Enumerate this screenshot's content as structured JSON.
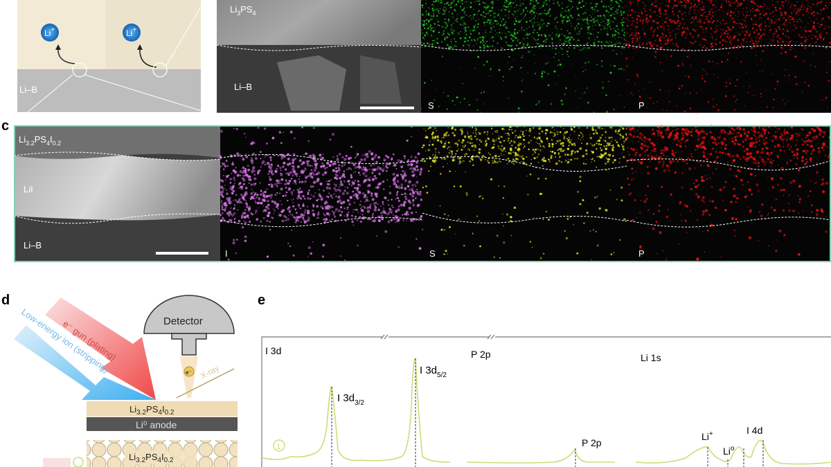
{
  "panel_labels": {
    "c": "c",
    "d": "d",
    "e": "e"
  },
  "panel_b": {
    "ion_label": "Li+",
    "ion_main": "Li",
    "ion_sup": "+",
    "substrate_label": "Li–B",
    "sem_top_label_main": "Li",
    "sem_top_label_sub": "3",
    "sem_top_label_rest": "PS",
    "sem_top_label_sub2": "4",
    "sem_bottom_label": "Li–B",
    "map_labels": [
      "S",
      "P"
    ],
    "map_colors": {
      "S": "#22c020",
      "P": "#e01010"
    }
  },
  "panel_c": {
    "sem_label_main": "Li",
    "sem_label_sub1": "3.2",
    "sem_label_mid": "PS",
    "sem_label_sub2": "4",
    "sem_label_mid2": "I",
    "sem_label_sub3": "0.2",
    "middle_layer": "LiI",
    "bottom_layer": "Li–B",
    "map_labels": [
      "I",
      "S",
      "P"
    ],
    "map_colors": {
      "I": "#d070e0",
      "S": "#e0e020",
      "P": "#e01010"
    },
    "border_color": "#7fd3b0"
  },
  "panel_d": {
    "detector": "Detector",
    "electron_gun": "e⁻ gun (plating)",
    "ion_beam": "Low-energy ion (stripping)",
    "xray": "X-ray",
    "electron": "e⁻",
    "layer1_main": "Li",
    "layer1_sub1": "3.2",
    "layer1_mid": "PS",
    "layer1_sub2": "4",
    "layer1_mid2": "I",
    "layer1_sub3": "0.2",
    "anode": "Li⁰ anode",
    "layer2_main": "Li",
    "layer2_sub1": "3.2",
    "layer2_mid": "PS",
    "layer2_sub2": "4",
    "layer2_mid2": "I",
    "layer2_sub3": "0.2",
    "colors": {
      "gun": "#f06060",
      "ion": "#60b8f0",
      "electrolyte": "#f0dcb4",
      "anode": "#555555"
    }
  },
  "chart_data": {
    "type": "line",
    "regions": [
      "I 3d",
      "P 2p",
      "Li 1s"
    ],
    "axis_breaks": 2,
    "peaks": [
      {
        "label": "I 3d3/2",
        "main": "I 3d",
        "sub": "3/2"
      },
      {
        "label": "I 3d5/2",
        "main": "I 3d",
        "sub": "5/2"
      },
      {
        "label": "P 2p"
      },
      {
        "label": "Li+",
        "main": "Li",
        "sup": "+"
      },
      {
        "label": "Li0",
        "main": "Li",
        "sup": "o"
      },
      {
        "label": "I 4d"
      }
    ],
    "series": [
      {
        "name": "1",
        "color": "#c8de78"
      }
    ]
  }
}
